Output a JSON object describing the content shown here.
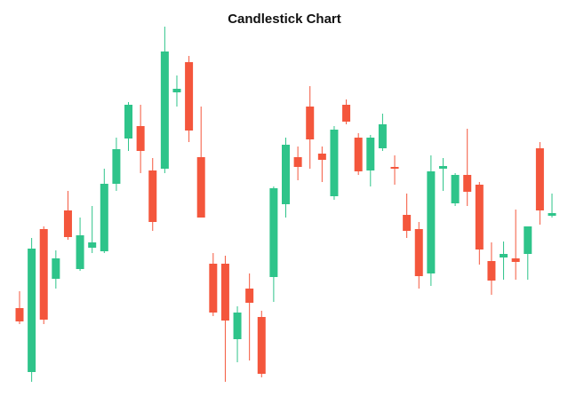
{
  "chart_data": {
    "type": "candlestick",
    "title": "Candlestick Chart",
    "up_color": "#2ec48a",
    "down_color": "#f4563c",
    "ylim": [
      0,
      420
    ],
    "open": [
      93,
      21,
      182,
      126,
      203,
      137,
      161,
      157,
      233,
      284,
      298,
      248,
      250,
      336,
      370,
      263,
      143,
      143,
      58,
      115,
      83,
      128,
      210,
      263,
      320,
      267,
      219,
      322,
      285,
      248,
      273,
      252,
      198,
      182,
      132,
      250,
      211,
      243,
      232,
      146,
      150,
      149,
      154,
      273,
      197
    ],
    "high": [
      112,
      172,
      185,
      158,
      225,
      195,
      208,
      250,
      285,
      325,
      322,
      262,
      410,
      355,
      377,
      320,
      155,
      152,
      95,
      132,
      90,
      230,
      285,
      275,
      343,
      275,
      298,
      328,
      290,
      288,
      312,
      265,
      222,
      190,
      265,
      262,
      245,
      295,
      235,
      167,
      168,
      204,
      185,
      280,
      222
    ],
    "low": [
      75,
      10,
      75,
      115,
      170,
      135,
      155,
      155,
      225,
      270,
      245,
      180,
      245,
      320,
      280,
      195,
      84,
      10,
      32,
      34,
      15,
      100,
      195,
      237,
      250,
      235,
      215,
      300,
      243,
      230,
      270,
      232,
      172,
      115,
      118,
      225,
      208,
      208,
      142,
      108,
      125,
      125,
      125,
      187,
      195
    ],
    "close": [
      78,
      160,
      80,
      149,
      173,
      175,
      167,
      233,
      272,
      322,
      270,
      190,
      382,
      340,
      293,
      195,
      88,
      79,
      88,
      99,
      19,
      228,
      277,
      252,
      283,
      260,
      294,
      303,
      247,
      285,
      300,
      250,
      180,
      129,
      247,
      253,
      243,
      224,
      159,
      124,
      154,
      145,
      185,
      203,
      200
    ]
  }
}
